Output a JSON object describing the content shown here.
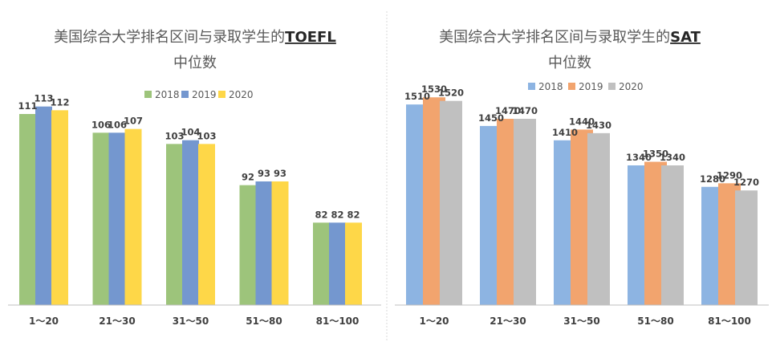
{
  "chart_data": [
    {
      "type": "bar",
      "title": "美国综合大学排名区间与录取学生的",
      "title_emphasis": "TOEFL",
      "subtitle": "中位数",
      "categories": [
        "1～20",
        "21～30",
        "31～50",
        "51～80",
        "81～100"
      ],
      "series": [
        {
          "name": "2018",
          "values": [
            111,
            106,
            103,
            92,
            82
          ],
          "color": "#9dc47b"
        },
        {
          "name": "2019",
          "values": [
            113,
            106,
            104,
            93,
            82
          ],
          "color": "#7497cf"
        },
        {
          "name": "2020",
          "values": [
            112,
            107,
            103,
            93,
            82
          ],
          "color": "#fed748"
        }
      ],
      "ylim": [
        60,
        120
      ],
      "grid": false,
      "legend_position": "top-center"
    },
    {
      "type": "bar",
      "title": "美国综合大学排名区间与录取学生的",
      "title_emphasis": "SAT",
      "subtitle": "中位数",
      "categories": [
        "1～20",
        "21～30",
        "31～50",
        "51～80",
        "81～100"
      ],
      "series": [
        {
          "name": "2018",
          "values": [
            1510,
            1450,
            1410,
            1340,
            1280
          ],
          "color": "#8db4e2"
        },
        {
          "name": "2019",
          "values": [
            1530,
            1470,
            1440,
            1350,
            1290
          ],
          "color": "#f2a46e"
        },
        {
          "name": "2020",
          "values": [
            1520,
            1470,
            1430,
            1340,
            1270
          ],
          "color": "#c0c0c0"
        }
      ],
      "ylim": [
        950,
        1600
      ],
      "grid": false,
      "legend_position": "top-center"
    }
  ]
}
